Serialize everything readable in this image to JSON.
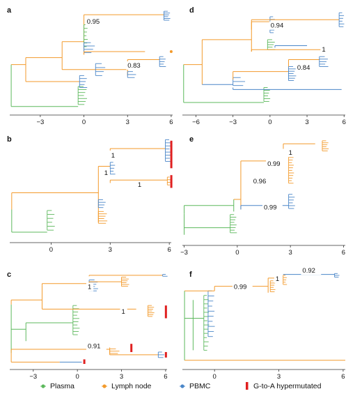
{
  "colors": {
    "plasma": "#5cb85c",
    "lymph_node": "#f39a2b",
    "pbmc": "#4a86c8",
    "hypermutated": "#e02020",
    "axis": "#333333"
  },
  "panels": [
    {
      "letter": "a",
      "axis_ticks": [
        -3,
        0,
        3,
        6
      ],
      "x_range": [
        -5.1,
        6.1
      ],
      "support": [
        "0.95",
        "0.83"
      ]
    },
    {
      "letter": "b",
      "axis_ticks": [
        0,
        3,
        6
      ],
      "x_range": [
        -2.1,
        6.1
      ],
      "support": [
        "1",
        "1",
        "1"
      ]
    },
    {
      "letter": "c",
      "axis_ticks": [
        -3,
        0,
        3,
        6
      ],
      "x_range": [
        -4.6,
        6.1
      ],
      "support": [
        "1",
        "1",
        "0.91"
      ]
    },
    {
      "letter": "d",
      "axis_ticks": [
        -6,
        -3,
        0,
        3,
        6
      ],
      "x_range": [
        -7.1,
        6.1
      ],
      "support": [
        "0.94",
        "1",
        "0.84"
      ]
    },
    {
      "letter": "e",
      "axis_ticks": [
        -3,
        0,
        3,
        6
      ],
      "x_range": [
        -3.1,
        6.1
      ],
      "support": [
        "1",
        "0.99",
        "0.96",
        "0.99"
      ]
    },
    {
      "letter": "f",
      "axis_ticks": [
        0,
        3,
        6
      ],
      "x_range": [
        -1.5,
        6.1
      ],
      "support": [
        "0.92",
        "1",
        "0.99"
      ]
    }
  ],
  "legend": [
    {
      "label": "Plasma",
      "color": "#5cb85c",
      "marker": "dot"
    },
    {
      "label": "Lymph node",
      "color": "#f39a2b",
      "marker": "dot"
    },
    {
      "label": "PBMC",
      "color": "#4a86c8",
      "marker": "dot"
    },
    {
      "label": "G-to-A hypermutated",
      "color": "#e02020",
      "marker": "bar"
    }
  ]
}
